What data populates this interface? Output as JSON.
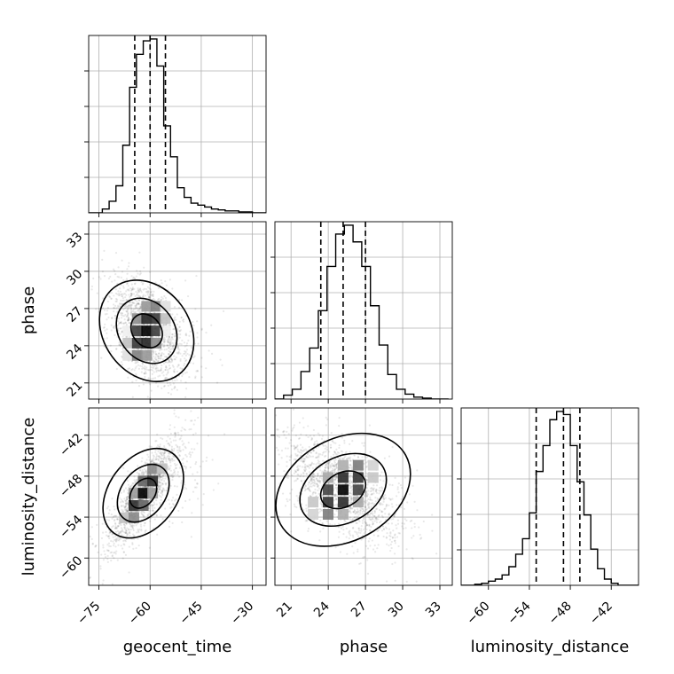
{
  "chart_data": {
    "type": "corner",
    "parameters": [
      "geocent_time",
      "phase",
      "luminosity_distance"
    ],
    "axis_labels": {
      "x": [
        "geocent_time",
        "phase",
        "luminosity_distance"
      ],
      "y": [
        "",
        "phase",
        "luminosity_distance"
      ]
    },
    "ranges": {
      "geocent_time": [
        -78,
        -26
      ],
      "phase": [
        19.7,
        34.0
      ],
      "luminosity_distance": [
        -64,
        -38
      ]
    },
    "ticks": {
      "geocent_time": [
        -75,
        -60,
        -45,
        -30
      ],
      "phase": [
        21,
        24,
        27,
        30,
        33
      ],
      "luminosity_distance": [
        -60,
        -54,
        -48,
        -42
      ]
    },
    "tick_labels": {
      "geocent_time": [
        "−75",
        "−60",
        "−45",
        "−30"
      ],
      "phase": [
        "21",
        "24",
        "27",
        "30",
        "33"
      ],
      "luminosity_distance": [
        "−60",
        "−54",
        "−48",
        "−42"
      ]
    },
    "quantiles": {
      "geocent_time": [
        -64.5,
        -60.0,
        -55.5
      ],
      "phase": [
        23.4,
        25.2,
        27.0
      ],
      "luminosity_distance": [
        -53.0,
        -49.0,
        -46.6
      ]
    },
    "histograms": {
      "geocent_time": {
        "edges": [
          -78,
          -76,
          -74,
          -72,
          -70,
          -68,
          -66,
          -64,
          -62,
          -60,
          -58,
          -56,
          -54,
          -52,
          -50,
          -48,
          -46,
          -44,
          -42,
          -40,
          -38,
          -36,
          -34,
          -32,
          -30,
          -28,
          -26
        ],
        "counts": [
          0,
          0,
          4,
          12,
          28,
          70,
          130,
          164,
          178,
          180,
          152,
          90,
          58,
          26,
          16,
          10,
          8,
          6,
          4,
          3,
          2,
          2,
          1,
          1,
          0,
          0
        ]
      },
      "phase": {
        "edges": [
          19.7,
          20.4,
          21.1,
          21.8,
          22.5,
          23.2,
          23.9,
          24.6,
          25.3,
          26.0,
          26.7,
          27.4,
          28.1,
          28.8,
          29.5,
          30.2,
          30.9,
          31.6,
          32.3,
          33.0,
          33.7
        ],
        "counts": [
          0,
          4,
          10,
          28,
          52,
          90,
          135,
          168,
          177,
          160,
          135,
          95,
          55,
          25,
          10,
          5,
          2,
          1,
          0,
          0
        ]
      },
      "luminosity_distance": {
        "edges": [
          -64,
          -63,
          -62,
          -61,
          -60,
          -59,
          -58,
          -57,
          -56,
          -55,
          -54,
          -53,
          -52,
          -51,
          -50,
          -49,
          -48,
          -47,
          -46,
          -45,
          -44,
          -43,
          -42,
          -41,
          -40,
          -39,
          -38
        ],
        "counts": [
          0,
          0,
          1,
          2,
          4,
          6,
          10,
          18,
          30,
          45,
          70,
          110,
          135,
          160,
          168,
          165,
          135,
          100,
          68,
          35,
          16,
          6,
          2,
          0,
          0,
          0
        ]
      }
    },
    "scatter_2d": [
      {
        "x": "geocent_time",
        "y": "phase",
        "center": [
          -61,
          25.2
        ],
        "spread": [
          5,
          2.2
        ],
        "correlation": -0.45
      },
      {
        "x": "geocent_time",
        "y": "luminosity_distance",
        "center": [
          -62,
          -50.5
        ],
        "spread": [
          5,
          4
        ],
        "correlation": 0.85
      },
      {
        "x": "phase",
        "y": "luminosity_distance",
        "center": [
          25.2,
          -50
        ],
        "spread": [
          2.2,
          4
        ],
        "correlation": -0.55
      }
    ],
    "grid": true
  }
}
